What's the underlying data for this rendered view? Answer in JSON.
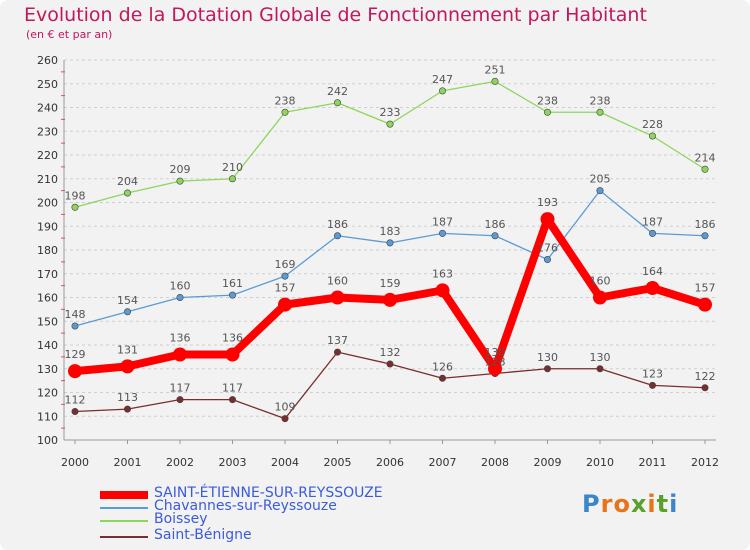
{
  "chart": {
    "title": "Evolution de la Dotation Globale de Fonctionnement par Habitant",
    "subtitle": "(en € et par an)"
  },
  "logo": {
    "text": "Proxiti",
    "letter_colors": [
      "#3a86c8",
      "#e8741a",
      "#e8741a",
      "#5aa02c",
      "#e8741a",
      "#5aa02c",
      "#3a86c8"
    ]
  },
  "chart_data": {
    "type": "line",
    "title": "Evolution de la Dotation Globale de Fonctionnement par Habitant",
    "subtitle": "(en € et par an)",
    "xlabel": "",
    "ylabel": "",
    "x": [
      "2000",
      "2001",
      "2002",
      "2003",
      "2004",
      "2005",
      "2006",
      "2007",
      "2008",
      "2009",
      "2010",
      "2011",
      "2012"
    ],
    "ylim": [
      100,
      260
    ],
    "yticks": [
      100,
      110,
      120,
      130,
      140,
      150,
      160,
      170,
      180,
      190,
      200,
      210,
      220,
      230,
      240,
      250,
      260
    ],
    "grid": "horizontal dashed",
    "legend_position": "bottom-left",
    "series": [
      {
        "name": "SAINT-ÉTIENNE-SUR-REYSSOUZE",
        "color": "#ff0000",
        "values": [
          129,
          131,
          136,
          136,
          157,
          160,
          159,
          163,
          130,
          193,
          160,
          164,
          157
        ],
        "emphasis": true
      },
      {
        "name": "Chavannes-sur-Reyssouze",
        "color": "#5b9bd5",
        "values": [
          148,
          154,
          160,
          161,
          169,
          186,
          183,
          187,
          186,
          176,
          205,
          187,
          186
        ]
      },
      {
        "name": "Boissey",
        "color": "#8cd65b",
        "values": [
          198,
          204,
          209,
          210,
          238,
          242,
          233,
          247,
          251,
          238,
          238,
          228,
          214
        ]
      },
      {
        "name": "Saint-Bénigne",
        "color": "#7a2d2d",
        "values": [
          112,
          113,
          117,
          117,
          109,
          137,
          132,
          126,
          128,
          130,
          130,
          123,
          122
        ]
      }
    ]
  }
}
